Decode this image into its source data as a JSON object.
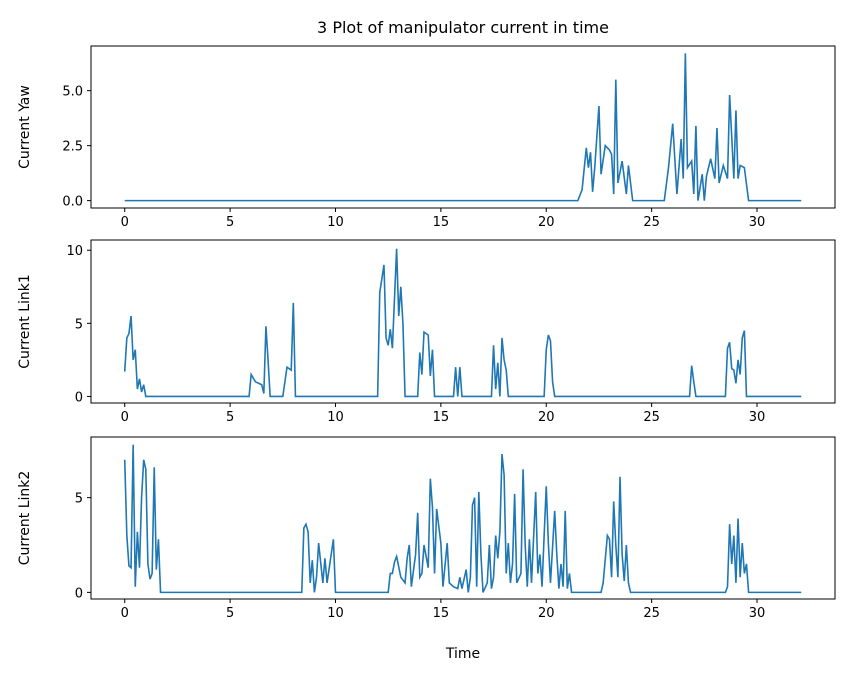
{
  "chart_data": [
    {
      "type": "line",
      "title": "3 Plot of manipulator current in time",
      "ylabel": "Current Yaw",
      "color": "#1f77b4",
      "xlim": [
        -1.6,
        33.7
      ],
      "ylim": [
        -0.335,
        7.03
      ],
      "xticks": [
        0,
        5,
        10,
        15,
        20,
        25,
        30
      ],
      "yticks": [
        {
          "value": 0,
          "label": "0.0"
        },
        {
          "value": 2.5,
          "label": "2.5"
        },
        {
          "value": 5,
          "label": "5.0"
        }
      ],
      "x": [
        0,
        21.5,
        21.7,
        21.9,
        22.0,
        22.1,
        22.2,
        22.3,
        22.5,
        22.6,
        22.8,
        23.0,
        23.1,
        23.2,
        23.3,
        23.4,
        23.6,
        23.8,
        23.9,
        24.1,
        25.6,
        25.8,
        26.0,
        26.2,
        26.4,
        26.5,
        26.6,
        26.7,
        26.9,
        27.0,
        27.1,
        27.2,
        27.4,
        27.5,
        27.6,
        27.8,
        28.0,
        28.1,
        28.2,
        28.4,
        28.6,
        28.7,
        28.9,
        29.0,
        29.1,
        29.2,
        29.4,
        29.6,
        32.1
      ],
      "values": [
        0,
        0,
        0.5,
        2.4,
        1.5,
        2.2,
        0.4,
        1.5,
        4.3,
        1.2,
        2.5,
        2.3,
        2.1,
        0.3,
        5.5,
        0.8,
        1.8,
        0.3,
        1.6,
        0,
        0,
        1.5,
        3.5,
        0.3,
        2.8,
        1.0,
        6.7,
        1.5,
        1.8,
        0.3,
        3.4,
        0,
        1.2,
        0,
        1.1,
        1.9,
        1.0,
        3.3,
        0.8,
        1.6,
        1.0,
        4.8,
        1.0,
        4.1,
        1.0,
        1.6,
        1.5,
        0,
        0
      ]
    },
    {
      "type": "line",
      "ylabel": "Current Link1",
      "color": "#1f77b4",
      "xlim": [
        -1.6,
        33.7
      ],
      "ylim": [
        -0.45,
        10.7
      ],
      "xticks": [
        0,
        5,
        10,
        15,
        20,
        25,
        30
      ],
      "yticks": [
        0,
        5,
        10
      ],
      "x": [
        0,
        0.1,
        0.2,
        0.3,
        0.4,
        0.5,
        0.6,
        0.7,
        0.8,
        0.9,
        1.0,
        5.9,
        6.0,
        6.2,
        6.5,
        6.6,
        6.7,
        6.8,
        6.9,
        7.5,
        7.7,
        7.9,
        8.0,
        8.1,
        12.0,
        12.1,
        12.3,
        12.4,
        12.5,
        12.6,
        12.7,
        12.9,
        13.0,
        13.1,
        13.2,
        13.3,
        13.9,
        14.0,
        14.1,
        14.2,
        14.4,
        14.5,
        14.6,
        14.7,
        15.6,
        15.7,
        15.8,
        15.9,
        16.0,
        17.4,
        17.5,
        17.6,
        17.7,
        17.8,
        17.9,
        18.0,
        18.1,
        18.2,
        19.9,
        20.0,
        20.1,
        20.2,
        20.3,
        20.4,
        26.8,
        26.9,
        27.0,
        27.1,
        28.5,
        28.6,
        28.7,
        28.8,
        28.9,
        29.0,
        29.1,
        29.2,
        29.3,
        29.4,
        29.5,
        32.1
      ],
      "values": [
        1.7,
        4.0,
        4.3,
        5.5,
        2.5,
        3.2,
        0.5,
        1.2,
        0.3,
        0.8,
        0,
        0,
        1.5,
        1.0,
        0.8,
        0.2,
        4.8,
        2.5,
        0,
        0,
        2.0,
        1.8,
        6.4,
        0,
        0,
        7.1,
        9.0,
        4.0,
        3.5,
        4.6,
        3.3,
        10.1,
        5.5,
        7.5,
        5.0,
        0,
        0,
        3.0,
        1.5,
        4.4,
        4.2,
        1.4,
        3.2,
        0,
        0,
        2.0,
        0,
        2.0,
        0,
        0,
        3.5,
        0.5,
        2.3,
        0,
        4.0,
        2.5,
        1.8,
        0,
        0,
        3.2,
        4.2,
        3.8,
        1.0,
        0,
        0,
        2.1,
        1.0,
        0,
        0,
        3.3,
        3.7,
        1.9,
        1.8,
        0.9,
        2.5,
        1.5,
        4.0,
        4.5,
        0,
        0
      ]
    },
    {
      "type": "line",
      "ylabel": "Current Link2",
      "xlabel": "Time",
      "color": "#1f77b4",
      "xlim": [
        -1.6,
        33.7
      ],
      "ylim": [
        -0.35,
        8.2
      ],
      "xticks": [
        0,
        5,
        10,
        15,
        20,
        25,
        30
      ],
      "yticks": [
        0,
        5
      ],
      "x": [
        0,
        0.1,
        0.2,
        0.3,
        0.4,
        0.5,
        0.6,
        0.7,
        0.8,
        0.9,
        1.0,
        1.1,
        1.2,
        1.3,
        1.4,
        1.5,
        1.6,
        1.7,
        8.4,
        8.5,
        8.6,
        8.7,
        8.8,
        8.9,
        9.0,
        9.1,
        9.2,
        9.4,
        9.5,
        9.6,
        9.9,
        10.0,
        12.5,
        12.6,
        12.7,
        12.8,
        12.9,
        13.1,
        13.3,
        13.4,
        13.5,
        13.6,
        13.8,
        13.9,
        14.0,
        14.1,
        14.2,
        14.4,
        14.5,
        14.6,
        14.7,
        14.8,
        15.0,
        15.1,
        15.3,
        15.4,
        15.6,
        15.8,
        15.9,
        16.0,
        16.2,
        16.3,
        16.4,
        16.5,
        16.6,
        16.7,
        16.8,
        16.9,
        17.0,
        17.2,
        17.3,
        17.4,
        17.5,
        17.6,
        17.7,
        17.8,
        17.9,
        18.0,
        18.1,
        18.2,
        18.3,
        18.4,
        18.5,
        18.6,
        18.8,
        18.9,
        19.0,
        19.1,
        19.2,
        19.3,
        19.5,
        19.6,
        19.7,
        19.8,
        19.9,
        20.0,
        20.1,
        20.2,
        20.4,
        20.5,
        20.6,
        20.7,
        20.8,
        20.9,
        21.0,
        21.1,
        21.2,
        22.6,
        22.7,
        22.9,
        23.0,
        23.1,
        23.2,
        23.3,
        23.4,
        23.5,
        23.6,
        23.7,
        23.8,
        23.9,
        24.0,
        28.5,
        28.6,
        28.7,
        28.8,
        28.9,
        29.0,
        29.1,
        29.2,
        29.3,
        29.4,
        29.5,
        29.6,
        32.1
      ],
      "values": [
        7.0,
        3.0,
        1.4,
        1.3,
        7.8,
        0.3,
        3.2,
        1.3,
        5.0,
        7.0,
        6.5,
        1.5,
        0.7,
        1.0,
        6.6,
        1.2,
        2.8,
        0,
        0,
        3.4,
        3.6,
        3.2,
        0.5,
        1.7,
        0,
        0.8,
        2.6,
        0.5,
        1.8,
        0.5,
        2.8,
        0,
        0,
        1.0,
        1.0,
        1.6,
        1.9,
        0.8,
        0.5,
        1.8,
        2.5,
        0.3,
        2.0,
        4.2,
        0.8,
        1.0,
        2.5,
        1.3,
        6.0,
        4.5,
        1.0,
        4.4,
        2.6,
        0.3,
        2.6,
        0.5,
        0.3,
        0.2,
        0.8,
        0.2,
        1.2,
        0,
        0.8,
        4.6,
        5.0,
        0.3,
        5.3,
        2.0,
        0,
        0.5,
        2.5,
        0.2,
        0.8,
        3.0,
        1.8,
        3.2,
        7.3,
        6.2,
        1.0,
        2.6,
        0.5,
        1.5,
        5.2,
        0.5,
        1.0,
        6.5,
        2.5,
        0.3,
        2.8,
        0.5,
        5.3,
        1.0,
        2.0,
        0.3,
        3.0,
        5.6,
        2.6,
        0.5,
        4.3,
        2.0,
        0.2,
        1.5,
        0.3,
        4.3,
        0.2,
        1.0,
        0,
        0,
        0.5,
        3.0,
        2.8,
        0.8,
        4.8,
        2.5,
        0.8,
        6.1,
        2.0,
        0.6,
        2.5,
        0.5,
        0,
        0,
        0.3,
        3.6,
        1.5,
        3.0,
        0.5,
        3.9,
        0.8,
        2.6,
        1.0,
        1.5,
        0,
        0
      ]
    }
  ]
}
